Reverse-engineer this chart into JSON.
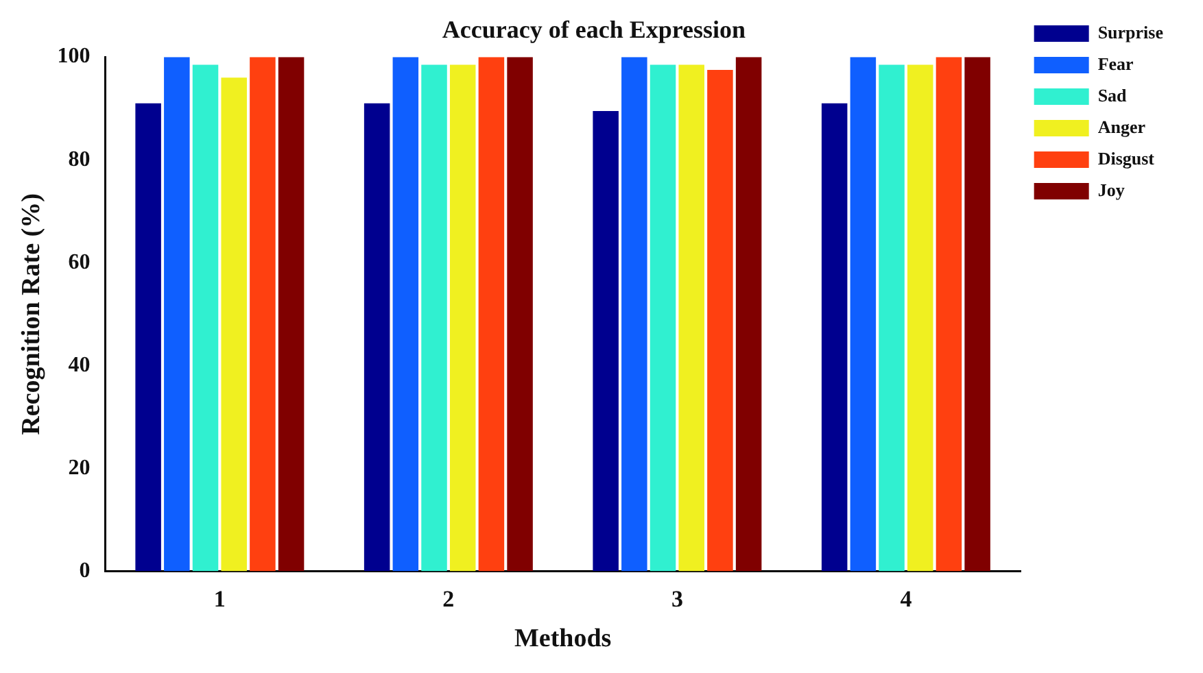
{
  "chart_data": {
    "type": "bar",
    "title": "Accuracy of each Expression",
    "xlabel": "Methods",
    "ylabel": "Recognition Rate (%)",
    "categories": [
      "1",
      "2",
      "3",
      "4"
    ],
    "series": [
      {
        "name": "Surprise",
        "color": "#00008f",
        "values": [
          91,
          91,
          89.5,
          91
        ]
      },
      {
        "name": "Fear",
        "color": "#0f5fff",
        "values": [
          100,
          100,
          100,
          100
        ]
      },
      {
        "name": "Sad",
        "color": "#30f0d0",
        "values": [
          98.5,
          98.5,
          98.5,
          98.5
        ]
      },
      {
        "name": "Anger",
        "color": "#f0f020",
        "values": [
          96,
          98.5,
          98.5,
          98.5
        ]
      },
      {
        "name": "Disgust",
        "color": "#ff4010",
        "values": [
          100,
          100,
          97.5,
          100
        ]
      },
      {
        "name": "Joy",
        "color": "#800000",
        "values": [
          100,
          100,
          100,
          100
        ]
      }
    ],
    "ylim": [
      0,
      100
    ],
    "yticks": [
      0,
      20,
      40,
      60,
      80,
      100
    ],
    "grid": false,
    "legend": "top right"
  }
}
